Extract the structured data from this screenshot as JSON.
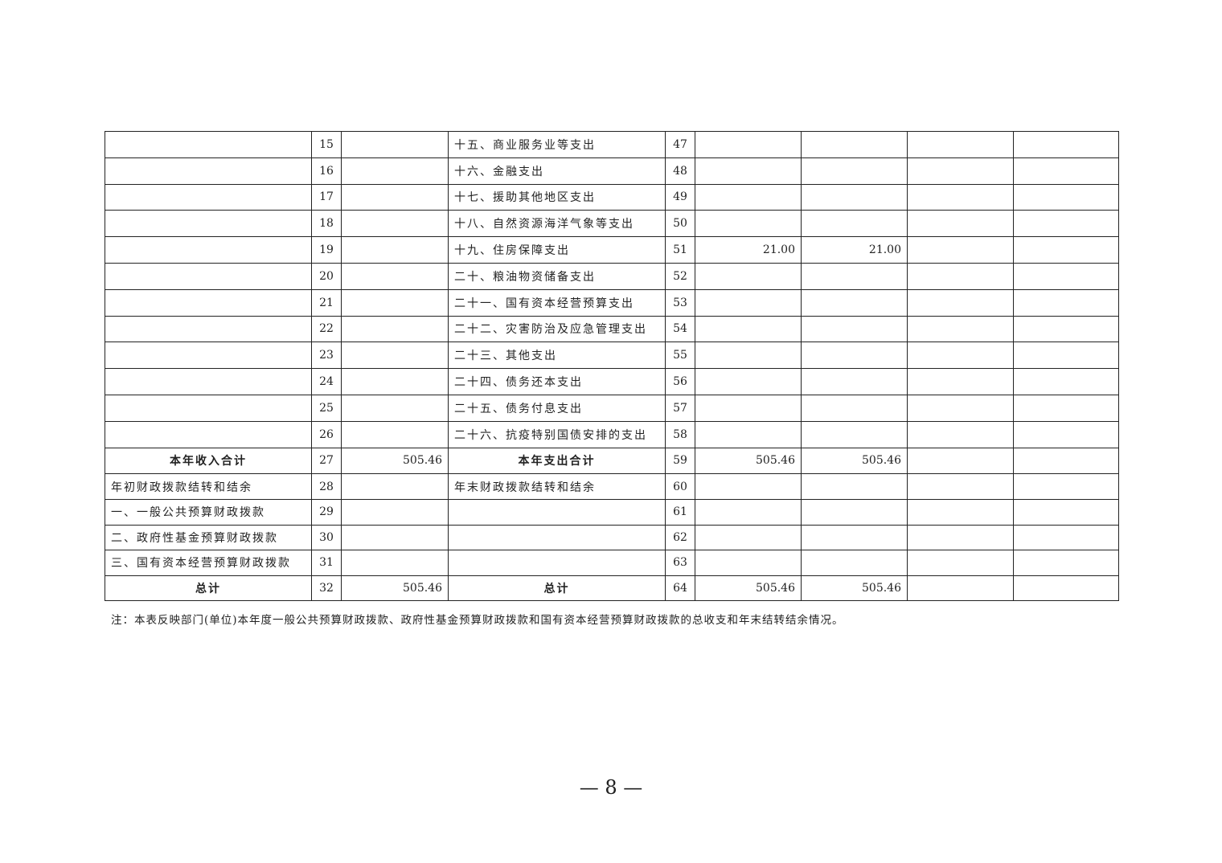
{
  "table": {
    "rows": [
      {
        "left_label": "",
        "left_no": "15",
        "left_val": "",
        "right_label": "十五、商业服务业等支出",
        "right_no": "47",
        "c1": "",
        "c2": "",
        "c3": "",
        "c4": ""
      },
      {
        "left_label": "",
        "left_no": "16",
        "left_val": "",
        "right_label": "十六、金融支出",
        "right_no": "48",
        "c1": "",
        "c2": "",
        "c3": "",
        "c4": ""
      },
      {
        "left_label": "",
        "left_no": "17",
        "left_val": "",
        "right_label": "十七、援助其他地区支出",
        "right_no": "49",
        "c1": "",
        "c2": "",
        "c3": "",
        "c4": ""
      },
      {
        "left_label": "",
        "left_no": "18",
        "left_val": "",
        "right_label": "十八、自然资源海洋气象等支出",
        "right_no": "50",
        "c1": "",
        "c2": "",
        "c3": "",
        "c4": ""
      },
      {
        "left_label": "",
        "left_no": "19",
        "left_val": "",
        "right_label": "十九、住房保障支出",
        "right_no": "51",
        "c1": "21.00",
        "c2": "21.00",
        "c3": "",
        "c4": ""
      },
      {
        "left_label": "",
        "left_no": "20",
        "left_val": "",
        "right_label": "二十、粮油物资储备支出",
        "right_no": "52",
        "c1": "",
        "c2": "",
        "c3": "",
        "c4": ""
      },
      {
        "left_label": "",
        "left_no": "21",
        "left_val": "",
        "right_label": "二十一、国有资本经营预算支出",
        "right_no": "53",
        "c1": "",
        "c2": "",
        "c3": "",
        "c4": ""
      },
      {
        "left_label": "",
        "left_no": "22",
        "left_val": "",
        "right_label": "二十二、灾害防治及应急管理支出",
        "right_no": "54",
        "c1": "",
        "c2": "",
        "c3": "",
        "c4": ""
      },
      {
        "left_label": "",
        "left_no": "23",
        "left_val": "",
        "right_label": "二十三、其他支出",
        "right_no": "55",
        "c1": "",
        "c2": "",
        "c3": "",
        "c4": ""
      },
      {
        "left_label": "",
        "left_no": "24",
        "left_val": "",
        "right_label": "二十四、债务还本支出",
        "right_no": "56",
        "c1": "",
        "c2": "",
        "c3": "",
        "c4": ""
      },
      {
        "left_label": "",
        "left_no": "25",
        "left_val": "",
        "right_label": "二十五、债务付息支出",
        "right_no": "57",
        "c1": "",
        "c2": "",
        "c3": "",
        "c4": ""
      },
      {
        "left_label": "",
        "left_no": "26",
        "left_val": "",
        "right_label": "二十六、抗疫特别国债安排的支出",
        "right_no": "58",
        "c1": "",
        "c2": "",
        "c3": "",
        "c4": ""
      },
      {
        "bold": true,
        "left_label": "本年收入合计",
        "left_no": "27",
        "left_val": "505.46",
        "right_label": "本年支出合计",
        "right_no": "59",
        "c1": "505.46",
        "c2": "505.46",
        "c3": "",
        "c4": ""
      },
      {
        "left_label": "年初财政拨款结转和结余",
        "left_no": "28",
        "left_val": "",
        "right_label": "年末财政拨款结转和结余",
        "right_no": "60",
        "c1": "",
        "c2": "",
        "c3": "",
        "c4": ""
      },
      {
        "left_label": "一、一般公共预算财政拨款",
        "left_no": "29",
        "left_val": "",
        "right_label": "",
        "right_no": "61",
        "c1": "",
        "c2": "",
        "c3": "",
        "c4": ""
      },
      {
        "left_label": "二、政府性基金预算财政拨款",
        "left_no": "30",
        "left_val": "",
        "right_label": "",
        "right_no": "62",
        "c1": "",
        "c2": "",
        "c3": "",
        "c4": ""
      },
      {
        "left_label": "三、国有资本经营预算财政拨款",
        "left_no": "31",
        "left_val": "",
        "right_label": "",
        "right_no": "63",
        "c1": "",
        "c2": "",
        "c3": "",
        "c4": ""
      },
      {
        "bold": true,
        "left_label": "总计",
        "left_no": "32",
        "left_val": "505.46",
        "right_label": "总计",
        "right_no": "64",
        "c1": "505.46",
        "c2": "505.46",
        "c3": "",
        "c4": ""
      }
    ]
  },
  "note": "注：本表反映部门(单位)本年度一般公共预算财政拨款、政府性基金预算财政拨款和国有资本经营预算财政拨款的总收支和年末结转结余情况。",
  "page_number": "— 8 —"
}
